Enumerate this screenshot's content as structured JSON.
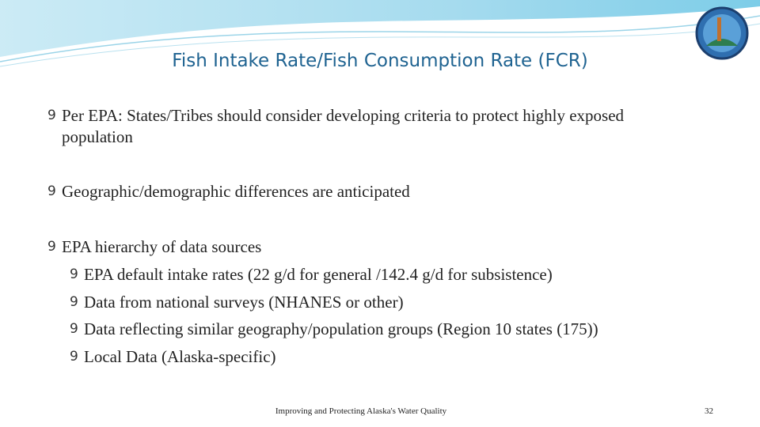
{
  "header": {
    "title": "Fish Intake Rate/Fish Consumption Rate (FCR)"
  },
  "bullet": "9",
  "bullets": [
    {
      "text": "Per EPA: States/Tribes should consider developing criteria to protect highly exposed population"
    },
    {
      "text": "Geographic/demographic differences are anticipated"
    },
    {
      "text": "EPA hierarchy of data sources",
      "sub_bullets": [
        "EPA default intake rates (22 g/d for general /142.4 g/d for subsistence)",
        "Data from national surveys (NHANES or other)",
        "Data reflecting similar geography/population groups (Region 10 states (175))",
        "Local Data (Alaska-specific)"
      ]
    }
  ],
  "footer": {
    "text": "Improving and Protecting Alaska's Water Quality",
    "page": "32"
  }
}
